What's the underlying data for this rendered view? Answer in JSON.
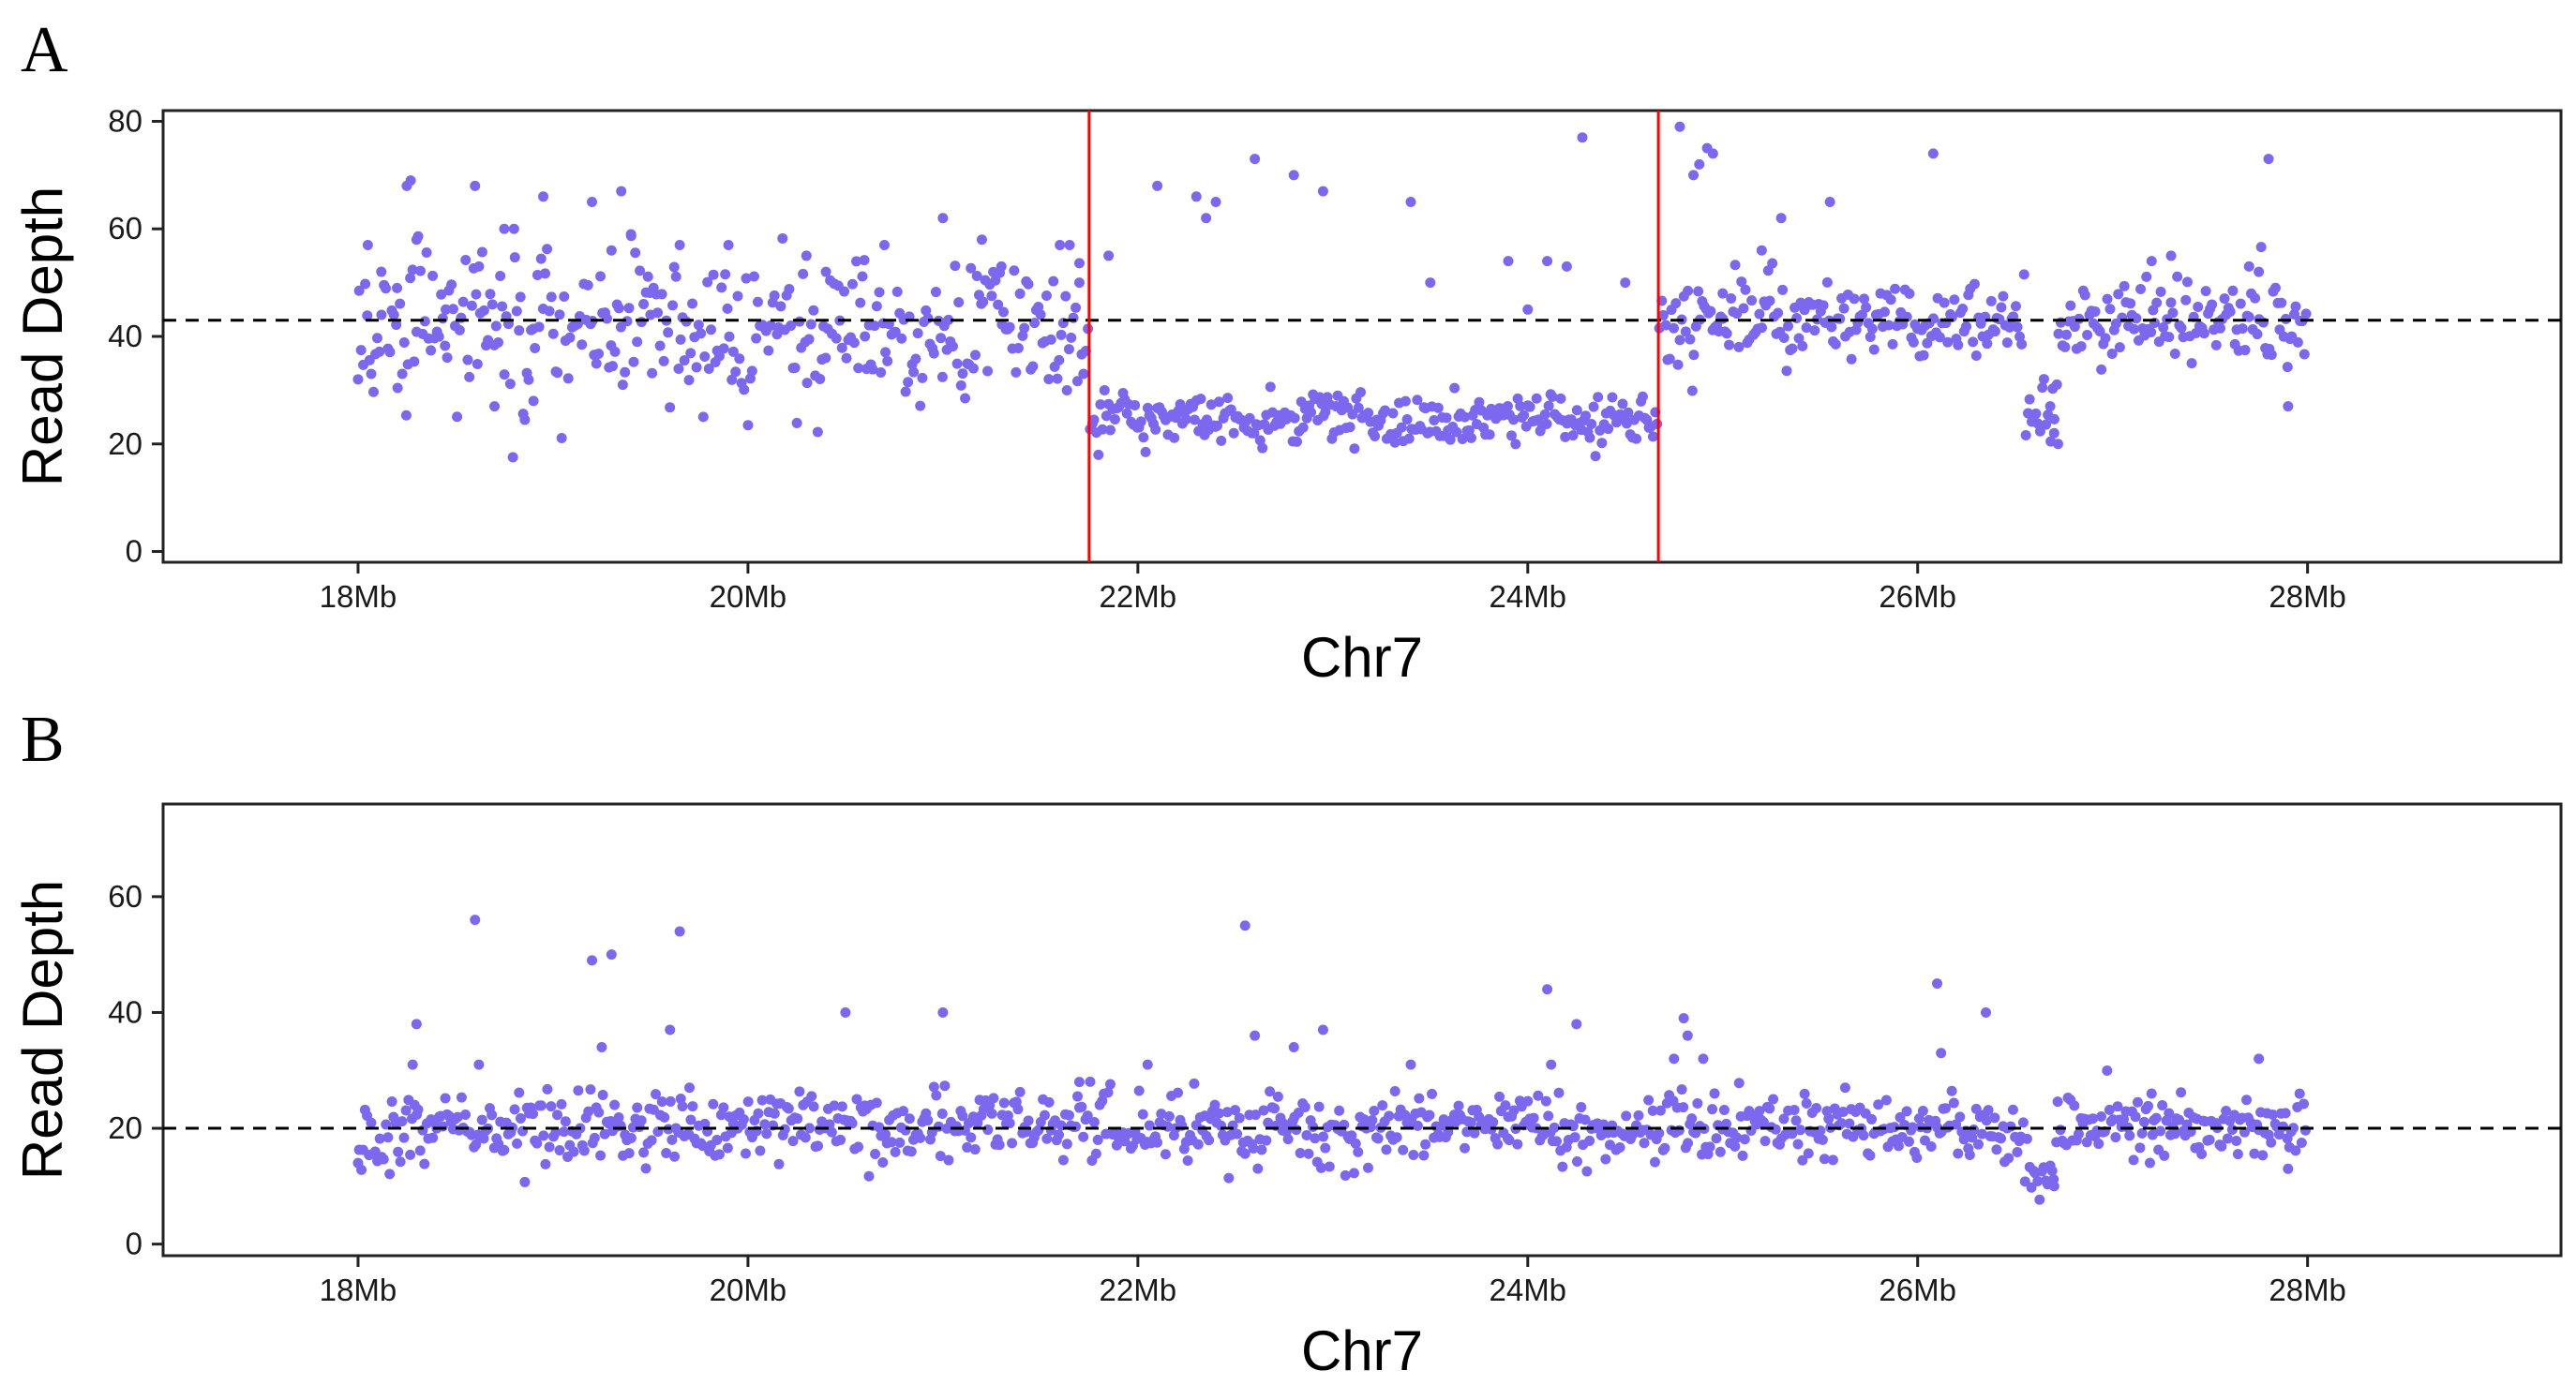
{
  "chart_data": [
    {
      "type": "scatter",
      "panel_label": "A",
      "xlabel": "Chr7",
      "ylabel": "Read Depth",
      "xlim": [
        17.0,
        29.3
      ],
      "ylim": [
        -2,
        82
      ],
      "x_ticks": [
        18,
        20,
        22,
        24,
        26,
        28
      ],
      "x_tick_labels": [
        "18Mb",
        "20Mb",
        "22Mb",
        "24Mb",
        "26Mb",
        "28Mb"
      ],
      "y_ticks": [
        0,
        20,
        40,
        60,
        80
      ],
      "y_tick_labels": [
        "0",
        "20",
        "40",
        "60",
        "80"
      ],
      "grid": false,
      "point_color": "#7b68ee",
      "reference_line": {
        "y": 43,
        "style": "dashed",
        "color": "#000000"
      },
      "boundaries": {
        "x": [
          21.75,
          24.67
        ],
        "color": "#ff0000"
      },
      "segments": [
        {
          "x_start": 18.0,
          "x_end": 21.75,
          "mean": 42,
          "sd": 7
        },
        {
          "x_start": 21.75,
          "x_end": 24.67,
          "mean": 24.5,
          "sd": 2.5
        },
        {
          "x_start": 24.67,
          "x_end": 28.0,
          "mean": 43,
          "sd": 3.5
        }
      ],
      "dip": {
        "x_start": 26.55,
        "x_end": 26.72,
        "mean": 26
      },
      "points": [
        [
          18.0,
          32
        ],
        [
          18.05,
          57
        ],
        [
          18.12,
          44
        ],
        [
          18.2,
          49
        ],
        [
          18.25,
          68
        ],
        [
          18.27,
          69
        ],
        [
          18.3,
          58
        ],
        [
          18.45,
          45
        ],
        [
          18.6,
          68
        ],
        [
          18.62,
          53
        ],
        [
          18.7,
          27
        ],
        [
          18.75,
          60
        ],
        [
          18.8,
          60
        ],
        [
          18.9,
          28
        ],
        [
          18.95,
          66
        ],
        [
          19.2,
          65
        ],
        [
          19.3,
          56
        ],
        [
          19.35,
          67
        ],
        [
          19.4,
          59
        ],
        [
          19.5,
          44
        ],
        [
          19.65,
          57
        ],
        [
          19.9,
          57
        ],
        [
          20.3,
          55
        ],
        [
          20.4,
          52
        ],
        [
          20.6,
          40
        ],
        [
          20.7,
          57
        ],
        [
          21.0,
          62
        ],
        [
          21.2,
          58
        ],
        [
          21.3,
          53
        ],
        [
          21.6,
          57
        ],
        [
          21.65,
          57
        ],
        [
          21.7,
          50
        ],
        [
          21.85,
          55
        ],
        [
          22.1,
          68
        ],
        [
          22.3,
          66
        ],
        [
          22.35,
          62
        ],
        [
          22.4,
          65
        ],
        [
          22.6,
          73
        ],
        [
          22.8,
          70
        ],
        [
          22.95,
          67
        ],
        [
          23.4,
          65
        ],
        [
          23.5,
          50
        ],
        [
          23.9,
          54
        ],
        [
          24.0,
          45
        ],
        [
          24.1,
          54
        ],
        [
          24.2,
          53
        ],
        [
          24.28,
          77
        ],
        [
          24.5,
          50
        ],
        [
          24.78,
          79
        ],
        [
          24.85,
          70
        ],
        [
          24.88,
          72
        ],
        [
          24.92,
          75
        ],
        [
          24.95,
          74
        ],
        [
          25.0,
          48
        ],
        [
          25.2,
          56
        ],
        [
          25.3,
          62
        ],
        [
          25.55,
          65
        ],
        [
          26.08,
          74
        ],
        [
          26.72,
          20
        ],
        [
          26.7,
          22
        ],
        [
          26.68,
          27
        ],
        [
          27.2,
          54
        ],
        [
          27.3,
          55
        ],
        [
          27.7,
          53
        ],
        [
          27.75,
          52
        ],
        [
          27.8,
          73
        ],
        [
          27.9,
          27
        ]
      ]
    },
    {
      "type": "scatter",
      "panel_label": "B",
      "xlabel": "Chr7",
      "ylabel": "Read Depth",
      "xlim": [
        17.0,
        29.3
      ],
      "ylim": [
        -2,
        76
      ],
      "x_ticks": [
        18,
        20,
        22,
        24,
        26,
        28
      ],
      "x_tick_labels": [
        "18Mb",
        "20Mb",
        "22Mb",
        "24Mb",
        "26Mb",
        "28Mb"
      ],
      "y_ticks": [
        0,
        20,
        40,
        60
      ],
      "y_tick_labels": [
        "0",
        "20",
        "40",
        "60"
      ],
      "grid": false,
      "point_color": "#7b68ee",
      "reference_line": {
        "y": 20,
        "style": "dashed",
        "color": "#000000"
      },
      "segments": [
        {
          "x_start": 18.0,
          "x_end": 28.0,
          "mean": 20,
          "sd": 3
        }
      ],
      "dip": {
        "x_start": 26.55,
        "x_end": 26.72,
        "mean": 12
      },
      "points": [
        [
          18.0,
          14
        ],
        [
          18.3,
          38
        ],
        [
          18.28,
          31
        ],
        [
          18.6,
          56
        ],
        [
          18.62,
          31
        ],
        [
          19.2,
          49
        ],
        [
          19.3,
          50
        ],
        [
          19.25,
          34
        ],
        [
          19.6,
          37
        ],
        [
          19.65,
          54
        ],
        [
          19.7,
          27
        ],
        [
          20.5,
          40
        ],
        [
          21.0,
          40
        ],
        [
          21.7,
          28
        ],
        [
          22.05,
          31
        ],
        [
          22.55,
          55
        ],
        [
          22.6,
          36
        ],
        [
          22.8,
          34
        ],
        [
          22.95,
          37
        ],
        [
          23.4,
          31
        ],
        [
          23.9,
          22
        ],
        [
          24.1,
          44
        ],
        [
          24.12,
          31
        ],
        [
          24.25,
          38
        ],
        [
          24.8,
          39
        ],
        [
          24.82,
          36
        ],
        [
          24.75,
          32
        ],
        [
          24.9,
          32
        ],
        [
          26.1,
          45
        ],
        [
          26.12,
          33
        ],
        [
          26.35,
          40
        ],
        [
          26.7,
          10
        ],
        [
          27.2,
          26
        ],
        [
          27.75,
          32
        ],
        [
          27.9,
          13
        ]
      ]
    }
  ]
}
